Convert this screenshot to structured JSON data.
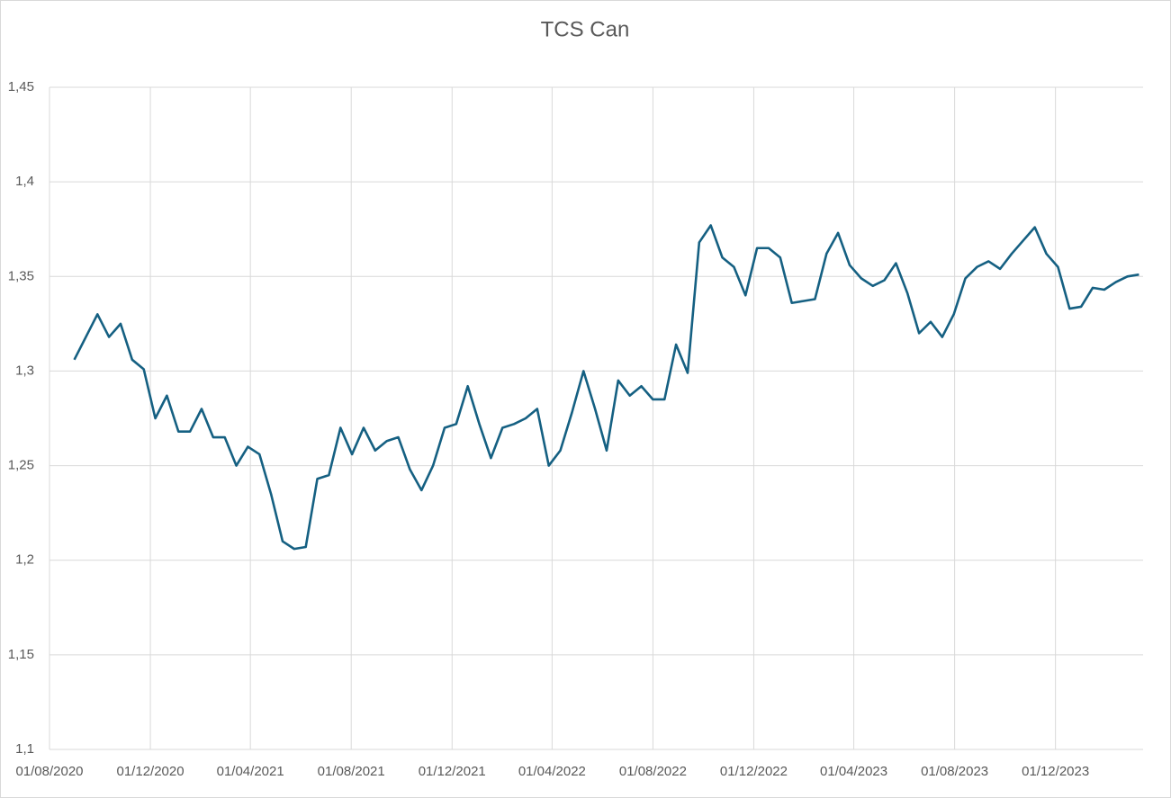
{
  "chart_data": {
    "type": "line",
    "title": "TCS Can",
    "x": [
      "2020-08-31",
      "2020-09-14",
      "2020-09-28",
      "2020-10-12",
      "2020-10-26",
      "2020-11-09",
      "2020-11-23",
      "2020-12-07",
      "2020-12-21",
      "2021-01-04",
      "2021-01-18",
      "2021-02-01",
      "2021-02-15",
      "2021-03-01",
      "2021-03-15",
      "2021-03-29",
      "2021-04-12",
      "2021-04-26",
      "2021-05-10",
      "2021-05-24",
      "2021-06-07",
      "2021-06-21",
      "2021-07-05",
      "2021-07-19",
      "2021-08-02",
      "2021-08-16",
      "2021-08-30",
      "2021-09-13",
      "2021-09-27",
      "2021-10-11",
      "2021-10-25",
      "2021-11-08",
      "2021-11-22",
      "2021-12-06",
      "2021-12-20",
      "2022-01-03",
      "2022-01-17",
      "2022-01-31",
      "2022-02-14",
      "2022-02-28",
      "2022-03-14",
      "2022-03-28",
      "2022-04-11",
      "2022-04-25",
      "2022-05-09",
      "2022-05-23",
      "2022-06-06",
      "2022-06-20",
      "2022-07-04",
      "2022-07-18",
      "2022-08-01",
      "2022-08-15",
      "2022-08-29",
      "2022-09-12",
      "2022-09-26",
      "2022-10-10",
      "2022-10-24",
      "2022-11-07",
      "2022-11-21",
      "2022-12-05",
      "2022-12-19",
      "2023-01-02",
      "2023-01-16",
      "2023-01-30",
      "2023-02-13",
      "2023-02-27",
      "2023-03-13",
      "2023-03-27",
      "2023-04-10",
      "2023-04-24",
      "2023-05-08",
      "2023-05-22",
      "2023-06-05",
      "2023-06-19",
      "2023-07-03",
      "2023-07-17",
      "2023-07-31",
      "2023-08-14",
      "2023-08-28",
      "2023-09-11",
      "2023-09-25",
      "2023-10-09",
      "2023-10-23",
      "2023-11-06",
      "2023-11-20",
      "2023-12-04",
      "2023-12-18",
      "2024-01-01",
      "2024-01-15",
      "2024-01-29",
      "2024-02-12",
      "2024-02-26",
      "2024-03-11"
    ],
    "series": [
      {
        "color": "#156082",
        "values": [
          1.306,
          1.318,
          1.33,
          1.318,
          1.325,
          1.306,
          1.301,
          1.275,
          1.287,
          1.268,
          1.268,
          1.28,
          1.265,
          1.265,
          1.25,
          1.26,
          1.256,
          1.235,
          1.21,
          1.206,
          1.207,
          1.243,
          1.245,
          1.27,
          1.256,
          1.27,
          1.258,
          1.263,
          1.265,
          1.248,
          1.237,
          1.25,
          1.27,
          1.272,
          1.292,
          1.272,
          1.254,
          1.27,
          1.272,
          1.275,
          1.28,
          1.25,
          1.258,
          1.278,
          1.3,
          1.28,
          1.258,
          1.295,
          1.287,
          1.292,
          1.285,
          1.285,
          1.314,
          1.299,
          1.368,
          1.377,
          1.36,
          1.355,
          1.34,
          1.365,
          1.365,
          1.36,
          1.336,
          1.337,
          1.338,
          1.362,
          1.373,
          1.356,
          1.349,
          1.345,
          1.348,
          1.357,
          1.341,
          1.32,
          1.326,
          1.318,
          1.33,
          1.349,
          1.355,
          1.358,
          1.354,
          1.362,
          1.369,
          1.376,
          1.362,
          1.355,
          1.333,
          1.334,
          1.344,
          1.343,
          1.347,
          1.35,
          1.351
        ]
      }
    ],
    "xlim": [
      "2020-08-01",
      "2024-03-16"
    ],
    "xticks": [
      {
        "value": "2020-08-01",
        "label": "01/08/2020"
      },
      {
        "value": "2020-12-01",
        "label": "01/12/2020"
      },
      {
        "value": "2021-04-01",
        "label": "01/04/2021"
      },
      {
        "value": "2021-08-01",
        "label": "01/08/2021"
      },
      {
        "value": "2021-12-01",
        "label": "01/12/2021"
      },
      {
        "value": "2022-04-01",
        "label": "01/04/2022"
      },
      {
        "value": "2022-08-01",
        "label": "01/08/2022"
      },
      {
        "value": "2022-12-01",
        "label": "01/12/2022"
      },
      {
        "value": "2023-04-01",
        "label": "01/04/2023"
      },
      {
        "value": "2023-08-01",
        "label": "01/08/2023"
      },
      {
        "value": "2023-12-01",
        "label": "01/12/2023"
      }
    ],
    "ylim": [
      1.1,
      1.45
    ],
    "yticks": [
      {
        "value": 1.1,
        "label": "1,1"
      },
      {
        "value": 1.15,
        "label": "1,15"
      },
      {
        "value": 1.2,
        "label": "1,2"
      },
      {
        "value": 1.25,
        "label": "1,25"
      },
      {
        "value": 1.3,
        "label": "1,3"
      },
      {
        "value": 1.35,
        "label": "1,35"
      },
      {
        "value": 1.4,
        "label": "1,4"
      },
      {
        "value": 1.45,
        "label": "1,45"
      }
    ],
    "grid": true
  }
}
